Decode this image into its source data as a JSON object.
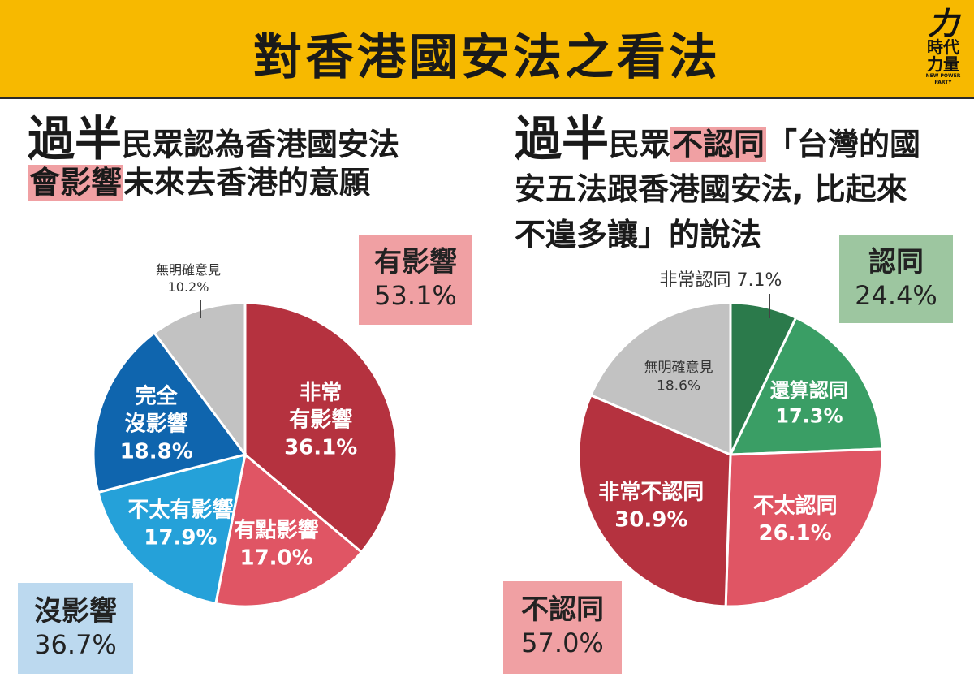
{
  "banner": {
    "title": "對香港國安法之看法"
  },
  "logo": {
    "mark": "力",
    "name_line1": "時代",
    "name_line2": "力量",
    "sub": "NEW POWER PARTY"
  },
  "left": {
    "headline_big": "過半",
    "headline_rest1": "民眾認為香港國安法",
    "headline_hl": "會影響",
    "headline_rest2": "未來去香港的意願",
    "callout_top": {
      "label": "有影響",
      "value": "53.1%"
    },
    "callout_bottom": {
      "label": "沒影響",
      "value": "36.7%"
    }
  },
  "right": {
    "headline_big": "過半",
    "headline_rest1": "民眾",
    "headline_hl": "不認同",
    "headline_rest2": "「台灣的國",
    "headline_line2": "安五法跟香港國安法, 比起來",
    "headline_line3": "不遑多讓」的說法",
    "callout_top": {
      "label": "認同",
      "value": "24.4%"
    },
    "callout_bottom": {
      "label": "不認同",
      "value": "57.0%"
    }
  },
  "chart_data": [
    {
      "type": "pie",
      "slices": [
        {
          "label": "非常有影響",
          "value": 36.1,
          "display": [
            "非常",
            "有影響",
            "36.1%"
          ],
          "color": "#b5323f",
          "text_color": "#ffffff"
        },
        {
          "label": "有點影響",
          "value": 17.0,
          "display": [
            "有點影響",
            "17.0%"
          ],
          "color": "#e05564",
          "text_color": "#ffffff"
        },
        {
          "label": "不太有影響",
          "value": 17.9,
          "display": [
            "不太有影響",
            "17.9%"
          ],
          "color": "#25a1d9",
          "text_color": "#ffffff"
        },
        {
          "label": "完全沒影響",
          "value": 18.8,
          "display": [
            "完全",
            "沒影響",
            "18.8%"
          ],
          "color": "#0f65ae",
          "text_color": "#ffffff"
        },
        {
          "label": "無明確意見",
          "value": 10.2,
          "display": [
            "無明確意見",
            "10.2%"
          ],
          "color": "#c2c2c2",
          "text_color": "#333333",
          "outside": true
        }
      ]
    },
    {
      "type": "pie",
      "slices": [
        {
          "label": "非常認同",
          "value": 7.1,
          "display": [
            "非常認同 7.1%"
          ],
          "color": "#2b7a4b",
          "text_color": "#333333",
          "outside": true
        },
        {
          "label": "還算認同",
          "value": 17.3,
          "display": [
            "還算認同",
            "17.3%"
          ],
          "color": "#3a9e65",
          "text_color": "#ffffff"
        },
        {
          "label": "不太認同",
          "value": 26.1,
          "display": [
            "不太認同",
            "26.1%"
          ],
          "color": "#e05564",
          "text_color": "#ffffff"
        },
        {
          "label": "非常不認同",
          "value": 30.9,
          "display": [
            "非常不認同",
            "30.9%"
          ],
          "color": "#b5323f",
          "text_color": "#ffffff"
        },
        {
          "label": "無明確意見",
          "value": 18.6,
          "display": [
            "無明確意見",
            "18.6%"
          ],
          "color": "#c2c2c2",
          "text_color": "#333333"
        }
      ]
    }
  ]
}
